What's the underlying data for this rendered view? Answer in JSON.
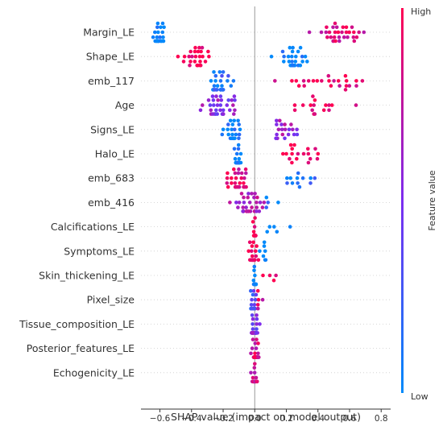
{
  "chart_data": {
    "type": "scatter",
    "subtype": "shap-beeswarm",
    "title": "",
    "xlabel": "SHAP value (impact on model output)",
    "ylabel": "",
    "xlim": [
      -0.72,
      0.86
    ],
    "xticks": [
      -0.6,
      -0.4,
      -0.2,
      0.0,
      0.2,
      0.4,
      0.6,
      0.8
    ],
    "xtick_labels": [
      "−0.6",
      "−0.4",
      "−0.2",
      "0.0",
      "0.2",
      "0.4",
      "0.6",
      "0.8"
    ],
    "zero_line": true,
    "grid": false,
    "colorbar": {
      "title": "Feature value",
      "high_label": "High",
      "low_label": "Low",
      "low_color": "#008afb",
      "mid_color": "#7c2df0",
      "high_color": "#ff0051"
    },
    "features": [
      {
        "name": "Margin_LE",
        "clusters": [
          {
            "center": -0.6,
            "spread": 0.04,
            "n": 26,
            "value": 0.0
          },
          {
            "center": 0.52,
            "spread": 0.16,
            "n": 32,
            "value": 0.85
          }
        ]
      },
      {
        "name": "Shape_LE",
        "clusters": [
          {
            "center": -0.36,
            "spread": 0.08,
            "n": 26,
            "value": 1.0
          },
          {
            "center": 0.24,
            "spread": 0.1,
            "n": 30,
            "value": 0.0
          }
        ]
      },
      {
        "name": "emb_117",
        "clusters": [
          {
            "center": -0.22,
            "spread": 0.08,
            "n": 26,
            "value": 0.15
          },
          {
            "center": 0.45,
            "spread": 0.33,
            "n": 24,
            "value": 0.95
          }
        ]
      },
      {
        "name": "Age",
        "clusters": [
          {
            "center": -0.2,
            "spread": 0.12,
            "n": 34,
            "value": 0.55
          },
          {
            "center": 0.38,
            "spread": 0.25,
            "n": 16,
            "value": 0.95
          }
        ]
      },
      {
        "name": "Signs_LE",
        "clusters": [
          {
            "center": -0.13,
            "spread": 0.06,
            "n": 24,
            "value": 0.05
          },
          {
            "center": 0.19,
            "spread": 0.1,
            "n": 20,
            "value": 0.6
          }
        ]
      },
      {
        "name": "Halo_LE",
        "clusters": [
          {
            "center": -0.1,
            "spread": 0.03,
            "n": 30,
            "value": 0.0
          },
          {
            "center": 0.3,
            "spread": 0.14,
            "n": 18,
            "value": 1.0
          }
        ]
      },
      {
        "name": "emb_683",
        "clusters": [
          {
            "center": -0.12,
            "spread": 0.1,
            "n": 28,
            "value": 0.9
          },
          {
            "center": 0.3,
            "spread": 0.15,
            "n": 12,
            "value": 0.1
          }
        ]
      },
      {
        "name": "emb_416",
        "clusters": [
          {
            "center": -0.04,
            "spread": 0.1,
            "n": 32,
            "value": 0.7
          },
          {
            "center": 0.1,
            "spread": 0.1,
            "n": 4,
            "value": 0.1
          }
        ]
      },
      {
        "name": "Calcifications_LE",
        "clusters": [
          {
            "center": 0.0,
            "spread": 0.01,
            "n": 28,
            "value": 1.0
          },
          {
            "center": 0.14,
            "spread": 0.12,
            "n": 5,
            "value": 0.0
          }
        ]
      },
      {
        "name": "Symptoms_LE",
        "clusters": [
          {
            "center": -0.01,
            "spread": 0.03,
            "n": 34,
            "value": 0.9
          },
          {
            "center": 0.06,
            "spread": 0.04,
            "n": 8,
            "value": 0.0
          }
        ]
      },
      {
        "name": "Skin_thickening_LE",
        "clusters": [
          {
            "center": 0.0,
            "spread": 0.01,
            "n": 26,
            "value": 0.0
          },
          {
            "center": 0.11,
            "spread": 0.06,
            "n": 4,
            "value": 1.0
          }
        ]
      },
      {
        "name": "Pixel_size",
        "clusters": [
          {
            "center": -0.01,
            "spread": 0.02,
            "n": 28,
            "value": 0.3
          },
          {
            "center": 0.03,
            "spread": 0.03,
            "n": 5,
            "value": 0.9
          }
        ]
      },
      {
        "name": "Tissue_composition_LE",
        "clusters": [
          {
            "center": 0.0,
            "spread": 0.03,
            "n": 34,
            "value": 0.5
          }
        ]
      },
      {
        "name": "Posterior_features_LE",
        "clusters": [
          {
            "center": 0.0,
            "spread": 0.03,
            "n": 34,
            "value": 0.85
          }
        ]
      },
      {
        "name": "Echogenicity_LE",
        "clusters": [
          {
            "center": 0.0,
            "spread": 0.02,
            "n": 30,
            "value": 0.8
          }
        ]
      }
    ]
  }
}
